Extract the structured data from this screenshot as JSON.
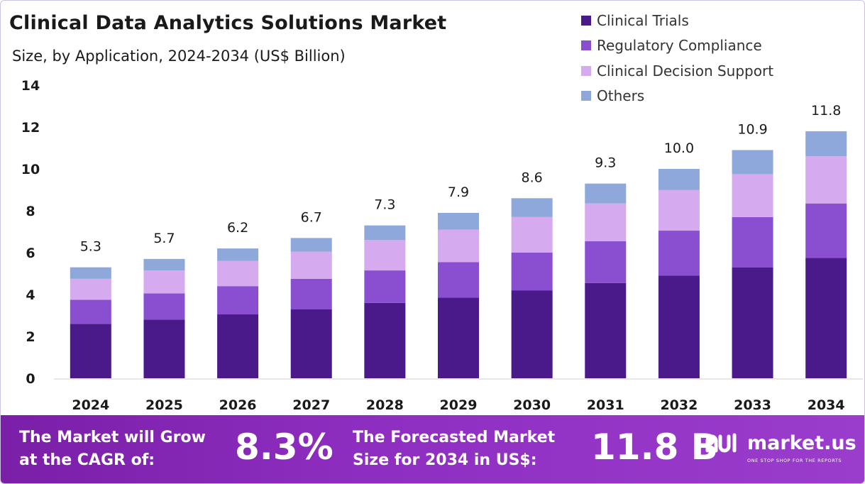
{
  "header": {
    "title": "Clinical Data Analytics Solutions Market",
    "subtitle": "Size, by Application, 2024-2034 (US$ Billion)"
  },
  "chart_data": {
    "type": "bar",
    "stacked": true,
    "categories": [
      "2024",
      "2025",
      "2026",
      "2027",
      "2028",
      "2029",
      "2030",
      "2031",
      "2032",
      "2033",
      "2034"
    ],
    "series": [
      {
        "name": "Clinical Trials",
        "color": "#4a1a8a",
        "values": [
          2.6,
          2.8,
          3.05,
          3.3,
          3.6,
          3.85,
          4.2,
          4.55,
          4.9,
          5.3,
          5.75
        ]
      },
      {
        "name": "Regulatory Compliance",
        "color": "#8a4fd0",
        "values": [
          1.15,
          1.25,
          1.35,
          1.45,
          1.55,
          1.7,
          1.8,
          2.0,
          2.15,
          2.4,
          2.6
        ]
      },
      {
        "name": "Clinical Decision Support",
        "color": "#d5aaee",
        "values": [
          1.0,
          1.1,
          1.2,
          1.3,
          1.45,
          1.55,
          1.7,
          1.8,
          1.95,
          2.05,
          2.25
        ]
      },
      {
        "name": "Others",
        "color": "#8fa8dc",
        "values": [
          0.55,
          0.55,
          0.6,
          0.65,
          0.7,
          0.8,
          0.9,
          0.95,
          1.0,
          1.15,
          1.2
        ]
      }
    ],
    "totals": [
      "5.3",
      "5.7",
      "6.2",
      "6.7",
      "7.3",
      "7.9",
      "8.6",
      "9.3",
      "10.0",
      "10.9",
      "11.8"
    ],
    "ylim": [
      0,
      14
    ],
    "yticks": [
      "0",
      "2",
      "4",
      "6",
      "8",
      "10",
      "12",
      "14"
    ],
    "legend_position": "top-right",
    "grid": false
  },
  "footer": {
    "cagr_label": "The Market will Grow\nat the CAGR of:",
    "cagr_value": "8.3%",
    "forecast_label": "The Forecasted Market\nSize for 2034 in US$:",
    "forecast_value": "11.8 B",
    "brand_name": "market.us",
    "brand_tagline": "ONE STOP SHOP FOR THE REPORTS"
  }
}
